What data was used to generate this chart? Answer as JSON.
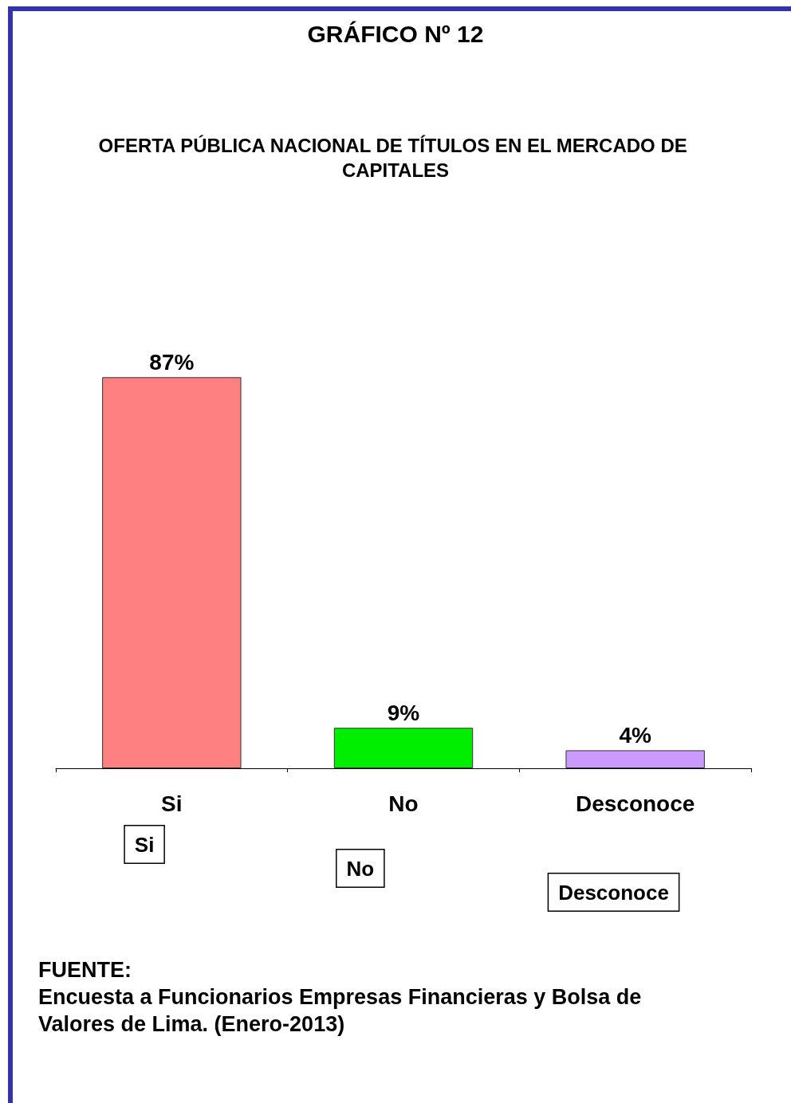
{
  "chart_data": {
    "type": "bar",
    "title": "GRÁFICO Nº 12",
    "subtitle": "OFERTA PÚBLICA NACIONAL DE TÍTULOS EN EL MERCADO DE CAPITALES",
    "categories": [
      "Si",
      "No",
      "Desconoce"
    ],
    "values": [
      87,
      9,
      4
    ],
    "colors": [
      "#ff8080",
      "#00ee00",
      "#cc99ff"
    ],
    "data_labels": true,
    "value_labels": [
      "87%",
      "9%",
      "4%"
    ],
    "tick_labels": "x",
    "annotations": [
      "Si",
      "No",
      "Desconoce",
      "FUENTE:\nEncuesta a Funcionarios Empresas Financieras y Bolsa de\nValores de Lima. (Enero-2013)"
    ]
  }
}
